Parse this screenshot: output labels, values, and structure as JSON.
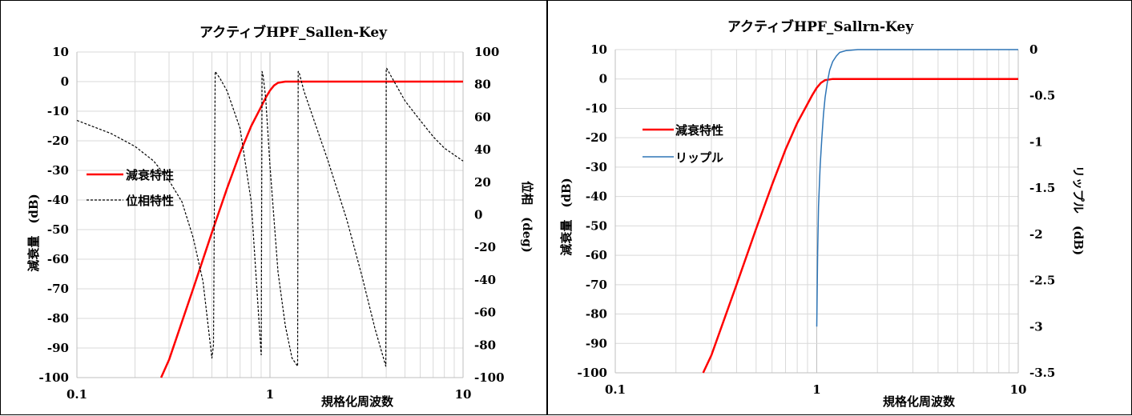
{
  "chart_data": [
    {
      "type": "line",
      "title": "アクティブHPF_Sallen-Key",
      "xlabel": "規格化周波数",
      "ylabel": "減衰量　(dB)",
      "y2label": "位相　(deg)",
      "xscale": "log",
      "xlim": [
        0.1,
        10
      ],
      "ylim": [
        -100,
        10
      ],
      "y2lim": [
        -100,
        100
      ],
      "xticks": [
        0.1,
        1,
        10
      ],
      "xtick_labels": [
        "0.1",
        "1",
        "10"
      ],
      "yticks": [
        10,
        0,
        -10,
        -20,
        -30,
        -40,
        -50,
        -60,
        -70,
        -80,
        -90,
        -100
      ],
      "ytick_labels": [
        "10",
        "0",
        "-10",
        "-20",
        "-30",
        "-40",
        "-50",
        "-60",
        "-70",
        "-80",
        "-90",
        "-100"
      ],
      "y2ticks": [
        100,
        80,
        60,
        40,
        20,
        0,
        -20,
        -40,
        -60,
        -80,
        -100
      ],
      "y2tick_labels": [
        "100",
        "80",
        "60",
        "40",
        "20",
        "0",
        "-20",
        "-40",
        "-60",
        "-80",
        "-100"
      ],
      "grid": true,
      "legend_position": "left-middle",
      "series": [
        {
          "name": "減衰特性",
          "axis": "left",
          "color": "#ff0000",
          "style": "solid",
          "x": [
            0.273,
            0.3,
            0.4,
            0.5,
            0.6,
            0.7,
            0.8,
            0.9,
            0.95,
            1.0,
            1.05,
            1.1,
            1.2,
            1.4,
            2,
            5,
            10
          ],
          "y": [
            -100,
            -94,
            -70,
            -51,
            -36,
            -24,
            -15,
            -8.5,
            -5.5,
            -3.0,
            -1.3,
            -0.4,
            0,
            0,
            0,
            0,
            0
          ]
        },
        {
          "name": "位相特性",
          "axis": "right",
          "color": "#000000",
          "style": "dashed",
          "x": [
            0.1,
            0.15,
            0.2,
            0.25,
            0.3,
            0.35,
            0.4,
            0.45,
            0.5,
            0.51,
            0.52,
            0.55,
            0.6,
            0.7,
            0.8,
            0.9,
            0.901,
            0.91,
            0.92,
            0.95,
            1.0,
            1.1,
            1.2,
            1.3,
            1.39,
            1.4,
            1.41,
            1.5,
            2.0,
            2.5,
            3.0,
            3.5,
            3.98,
            4.0,
            4.02,
            5.0,
            6.0,
            7.0,
            8.0,
            10.0
          ],
          "y": [
            58,
            50,
            42,
            33,
            21,
            8,
            -14,
            -41,
            -88,
            -80,
            88,
            84,
            76,
            53,
            8,
            -86,
            -86,
            88,
            86,
            72,
            30,
            -35,
            -68,
            -88,
            -93,
            88,
            88,
            76,
            33,
            -3,
            -38,
            -70,
            -93,
            90,
            90,
            70,
            58,
            48,
            41,
            33
          ]
        }
      ]
    },
    {
      "type": "line",
      "title": "アクティブHPF_Sallrn-Key",
      "xlabel": "規格化周波数",
      "ylabel": "減衰量　(dB)",
      "y2label": "リップル　(dB)",
      "xscale": "log",
      "xlim": [
        0.1,
        10
      ],
      "ylim": [
        -100,
        10
      ],
      "y2lim": [
        -3.5,
        0
      ],
      "xticks": [
        0.1,
        1,
        10
      ],
      "xtick_labels": [
        "0.1",
        "1",
        "10"
      ],
      "yticks": [
        10,
        0,
        -10,
        -20,
        -30,
        -40,
        -50,
        -60,
        -70,
        -80,
        -90,
        -100
      ],
      "ytick_labels": [
        "10",
        "0",
        "-10",
        "-20",
        "-30",
        "-40",
        "-50",
        "-60",
        "-70",
        "-80",
        "-90",
        "-100"
      ],
      "y2ticks": [
        0,
        -0.5,
        -1,
        -1.5,
        -2,
        -2.5,
        -3,
        -3.5
      ],
      "y2tick_labels": [
        "0",
        "-0.5",
        "-1",
        "-1.5",
        "-2",
        "-2.5",
        "-3",
        "-3.5"
      ],
      "grid": true,
      "legend_position": "left-upper",
      "series": [
        {
          "name": "減衰特性",
          "axis": "left",
          "color": "#ff0000",
          "style": "solid",
          "x": [
            0.273,
            0.3,
            0.4,
            0.5,
            0.6,
            0.7,
            0.8,
            0.9,
            0.95,
            1.0,
            1.05,
            1.1,
            1.2,
            1.4,
            2,
            5,
            10
          ],
          "y": [
            -100,
            -94,
            -70,
            -51,
            -36,
            -24,
            -15,
            -8.5,
            -5.5,
            -3.0,
            -1.3,
            -0.4,
            0,
            0,
            0,
            0,
            0
          ]
        },
        {
          "name": "リップル",
          "axis": "right",
          "color": "#2e75b6",
          "style": "solid",
          "x": [
            1.0,
            1.01,
            1.02,
            1.04,
            1.06,
            1.08,
            1.1,
            1.13,
            1.16,
            1.2,
            1.25,
            1.3,
            1.4,
            1.6,
            2,
            3,
            5,
            10
          ],
          "y": [
            -3.0,
            -2.2,
            -1.7,
            -1.25,
            -0.95,
            -0.7,
            -0.52,
            -0.35,
            -0.22,
            -0.13,
            -0.07,
            -0.03,
            -0.01,
            0,
            0,
            0,
            0,
            0
          ]
        }
      ]
    }
  ]
}
